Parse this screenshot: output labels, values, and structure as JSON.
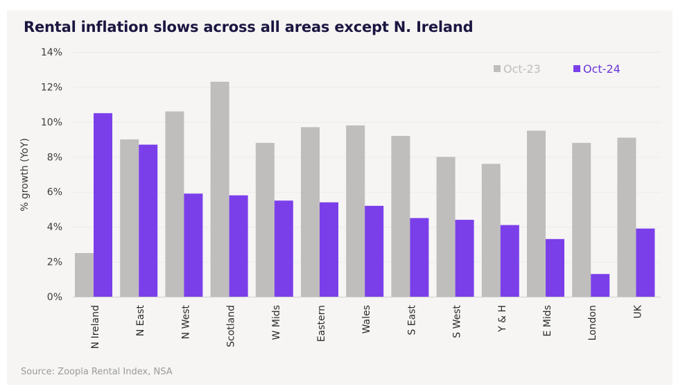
{
  "title": "Rental inflation slows across all areas except N. Ireland",
  "source": "Source: Zoopla Rental Index, NSA",
  "chart_data": {
    "type": "bar",
    "title": "Rental inflation slows across all areas except N. Ireland",
    "xlabel": "",
    "ylabel": "% growth (YoY)",
    "ylim": [
      0,
      14
    ],
    "yticks": [
      "0%",
      "2%",
      "4%",
      "6%",
      "8%",
      "10%",
      "12%",
      "14%"
    ],
    "ytick_values": [
      0,
      2,
      4,
      6,
      8,
      10,
      12,
      14
    ],
    "grid": true,
    "legend_position": "top-right",
    "categories": [
      "N Ireland",
      "N East",
      "N West",
      "Scotland",
      "W Mids",
      "Eastern",
      "Wales",
      "S East",
      "S West",
      "Y & H",
      "E Mids",
      "London",
      "UK"
    ],
    "series": [
      {
        "name": "Oct-23",
        "color": "#c0bebc",
        "values": [
          2.5,
          9.0,
          10.6,
          12.3,
          8.8,
          9.7,
          9.8,
          9.2,
          8.0,
          7.6,
          9.5,
          8.8,
          9.1
        ]
      },
      {
        "name": "Oct-24",
        "color": "#7b3fea",
        "values": [
          10.5,
          8.7,
          5.9,
          5.8,
          5.5,
          5.4,
          5.2,
          4.5,
          4.4,
          4.1,
          3.3,
          1.3,
          3.9
        ]
      }
    ]
  }
}
